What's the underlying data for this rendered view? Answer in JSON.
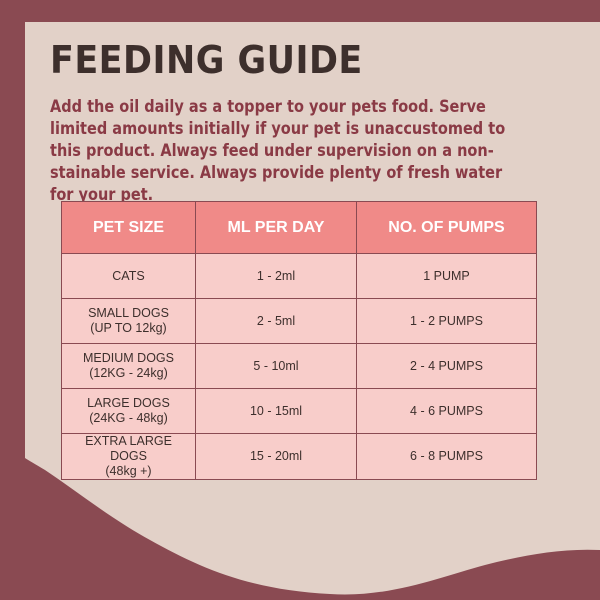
{
  "colors": {
    "background": "#8a4a52",
    "panel": "#e2d1c8",
    "title": "#3d2f2c",
    "intro_text": "#8a3a45",
    "table_header": "#f08a88",
    "table_cell": "#f8cdca",
    "border": "#8a4a52"
  },
  "title": "FEEDING GUIDE",
  "intro": "Add the oil daily as a topper to your pets food. Serve limited amounts initially if your pet is unaccustomed to this product. Always feed under supervision on a non-stainable service. Always provide plenty of fresh water for your pet.",
  "table": {
    "headers": [
      "PET SIZE",
      "ML PER DAY",
      "NO. OF PUMPS"
    ],
    "rows": [
      {
        "size": "CATS",
        "size_note": "",
        "ml": "1 - 2ml",
        "pumps": "1 PUMP"
      },
      {
        "size": "SMALL DOGS",
        "size_note": "(UP TO 12kg)",
        "ml": "2 - 5ml",
        "pumps": "1 - 2 PUMPS"
      },
      {
        "size": "MEDIUM DOGS",
        "size_note": "(12KG - 24kg)",
        "ml": "5 - 10ml",
        "pumps": "2 - 4 PUMPS"
      },
      {
        "size": "LARGE DOGS",
        "size_note": "(24KG - 48kg)",
        "ml": "10 - 15ml",
        "pumps": "4 - 6 PUMPS"
      },
      {
        "size": "EXTRA LARGE DOGS",
        "size_note": "(48kg +)",
        "ml": "15 - 20ml",
        "pumps": "6 - 8 PUMPS"
      }
    ]
  }
}
